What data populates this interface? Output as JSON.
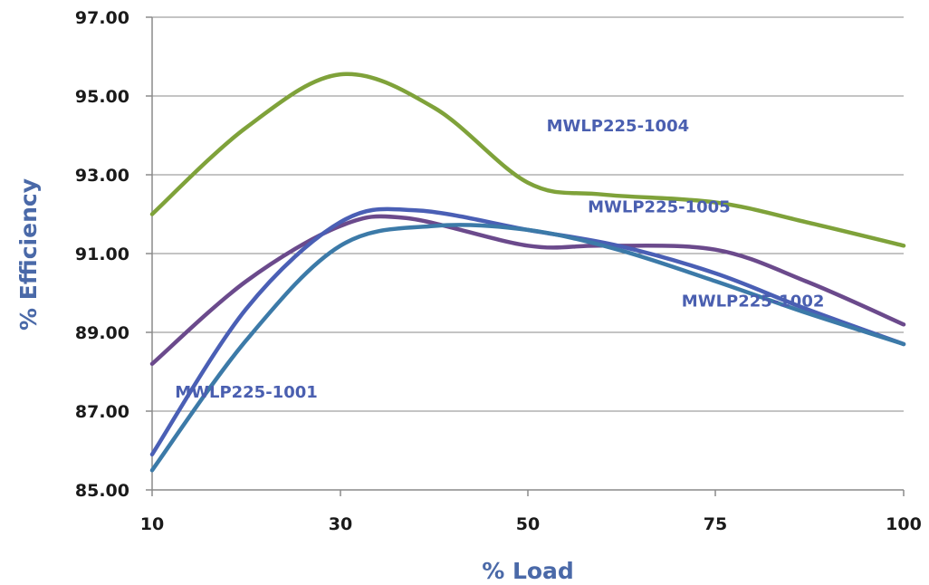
{
  "chart_data": {
    "type": "line",
    "title": "",
    "xlabel": "% Load",
    "ylabel": "% Efficiency",
    "x": [
      "10",
      "30",
      "50",
      "75",
      "100"
    ],
    "ylim": [
      85.0,
      97.0
    ],
    "yticks": [
      "85.00",
      "87.00",
      "89.00",
      "91.00",
      "93.00",
      "95.00",
      "97.00"
    ],
    "ytick_values": [
      85,
      87,
      89,
      91,
      93,
      95,
      97
    ],
    "grid": true,
    "legend": "none",
    "series": [
      {
        "name": "MWLP225-1004",
        "color": "#7fa23a",
        "points": [
          [
            10,
            92.0
          ],
          [
            20,
            94.2
          ],
          [
            30,
            95.55
          ],
          [
            40,
            94.7
          ],
          [
            50,
            92.8
          ],
          [
            60,
            92.5
          ],
          [
            75,
            92.3
          ],
          [
            87,
            91.8
          ],
          [
            100,
            91.2
          ]
        ]
      },
      {
        "name": "MWLP225-1005",
        "color": "#6b4a8c",
        "points": [
          [
            10,
            88.2
          ],
          [
            20,
            90.3
          ],
          [
            30,
            91.7
          ],
          [
            37,
            91.9
          ],
          [
            50,
            91.2
          ],
          [
            60,
            91.2
          ],
          [
            75,
            91.1
          ],
          [
            87,
            90.3
          ],
          [
            100,
            89.2
          ]
        ]
      },
      {
        "name": "MWLP225-1002",
        "color": "#4a5fb5",
        "points": [
          [
            10,
            85.9
          ],
          [
            20,
            89.6
          ],
          [
            30,
            91.8
          ],
          [
            38,
            92.1
          ],
          [
            50,
            91.6
          ],
          [
            62,
            91.2
          ],
          [
            75,
            90.5
          ],
          [
            87,
            89.6
          ],
          [
            100,
            88.7
          ]
        ]
      },
      {
        "name": "MWLP225-1001",
        "color": "#3c7aa8",
        "points": [
          [
            10,
            85.5
          ],
          [
            20,
            88.8
          ],
          [
            30,
            91.2
          ],
          [
            40,
            91.7
          ],
          [
            50,
            91.6
          ],
          [
            62,
            91.1
          ],
          [
            75,
            90.3
          ],
          [
            87,
            89.5
          ],
          [
            100,
            88.7
          ]
        ]
      }
    ],
    "annotations": [
      {
        "text": "MWLP225-1004",
        "series": "MWLP225-1004",
        "x": 62,
        "y": 94.1
      },
      {
        "text": "MWLP225-1005",
        "series": "MWLP225-1005",
        "x": 67.5,
        "y": 92.05
      },
      {
        "text": "MWLP225-1002",
        "series": "MWLP225-1002",
        "x": 80,
        "y": 89.65
      },
      {
        "text": "MWLP225-1001",
        "series": "MWLP225-1001",
        "x": 20,
        "y": 87.35
      }
    ]
  }
}
